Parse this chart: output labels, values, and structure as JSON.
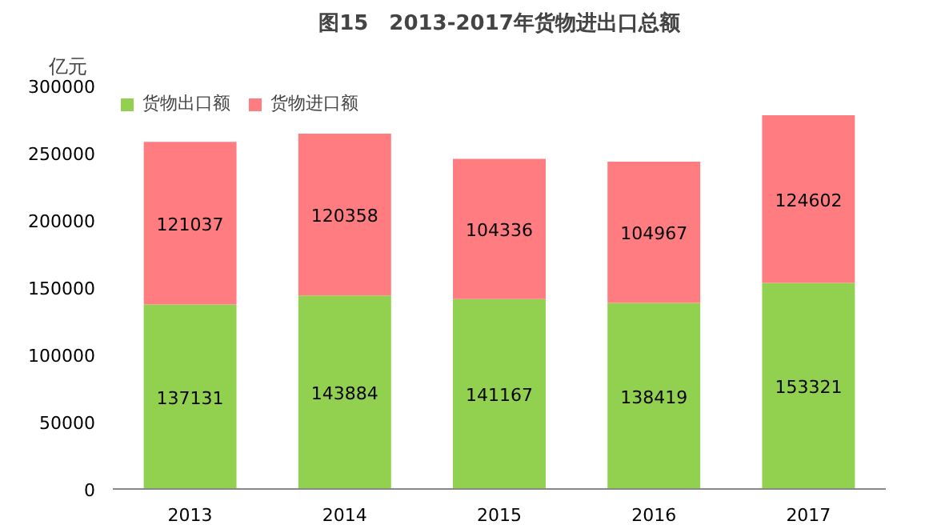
{
  "chart_data": {
    "type": "bar",
    "title": "图15　2013-2017年货物进出口总额",
    "ylabel": "亿元",
    "categories": [
      "2013",
      "2014",
      "2015",
      "2016",
      "2017"
    ],
    "stacked": true,
    "data_labels": true,
    "legend": "top left",
    "grid": false,
    "ylim": [
      0,
      300000
    ],
    "yticks": [
      0,
      50000,
      100000,
      150000,
      200000,
      250000,
      300000
    ],
    "series": [
      {
        "name": "货物出口额",
        "color": "#92d050",
        "values": [
          137131,
          143884,
          141167,
          138419,
          153321
        ]
      },
      {
        "name": "货物进口额",
        "color": "#ff7c80",
        "values": [
          121037,
          120358,
          104336,
          104967,
          124602
        ]
      }
    ]
  }
}
